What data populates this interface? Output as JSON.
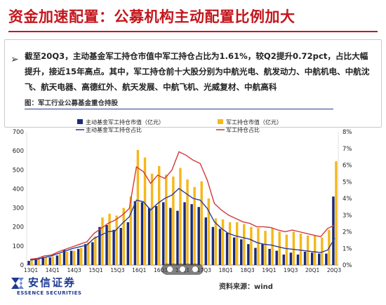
{
  "header": {
    "title": "资金加速配置：公募机构主动配置比例加大"
  },
  "bullet": {
    "text": "截至20Q3，主动基金军工持仓市值中军工持仓占比为1.61%，较Q2提升0.72pct，占比大幅提升，接近15年高点。其中，军工持仓前十大股分别为中航光电、航发动力、中航机电、中航沈飞、航天电器、高德红外、航天发展、中航飞机、光威复材、中航高科",
    "caption": "图：军工行业公募基金重仓持股"
  },
  "footer": {
    "logo_cn": "安信证券",
    "logo_en": "ESSENCE SECURITIES",
    "source": "资料来源：wind"
  },
  "colors": {
    "title_red": "#c4161c",
    "series_navy": "#1a2a7a",
    "series_gold": "#f5b81c",
    "line_blue": "#2b3d9c",
    "line_red": "#d23a3a",
    "brand_blue": "#1f3a93"
  },
  "chart_data": {
    "type": "bar",
    "x_ticks": [
      "13Q1",
      "14Q1",
      "14Q3",
      "15Q1",
      "15Q3",
      "16Q1",
      "16Q3",
      "17Q1",
      "17Q3",
      "18Q1",
      "18Q3",
      "19Q1",
      "19Q3",
      "20Q1",
      "20Q3"
    ],
    "ylim_left": [
      0,
      700
    ],
    "yticks_left": [
      0,
      100,
      200,
      300,
      400,
      500,
      600,
      700
    ],
    "ylim_right": [
      0,
      8
    ],
    "yticks_right": [
      "0%",
      "1%",
      "2%",
      "3%",
      "4%",
      "5%",
      "6%",
      "7%",
      "8%"
    ],
    "series": [
      {
        "name": "主动基金军工持仓市值（亿元）",
        "type": "bar",
        "axis": "left",
        "values": [
          22,
          30,
          42,
          40,
          50,
          80,
          75,
          85,
          110,
          120,
          200,
          210,
          185,
          195,
          225,
          335,
          330,
          300,
          310,
          330,
          300,
          285,
          330,
          320,
          305,
          250,
          200,
          190,
          170,
          145,
          135,
          110,
          90,
          110,
          85,
          75,
          55,
          65,
          55,
          70,
          65,
          60,
          60,
          360
        ]
      },
      {
        "name": "军工持仓市值（亿元）",
        "type": "bar",
        "axis": "left",
        "values": [
          25,
          35,
          40,
          45,
          60,
          70,
          75,
          90,
          120,
          150,
          250,
          270,
          260,
          300,
          360,
          605,
          565,
          480,
          520,
          475,
          465,
          510,
          450,
          410,
          440,
          350,
          245,
          240,
          225,
          225,
          215,
          200,
          195,
          180,
          195,
          175,
          160,
          175,
          165,
          155,
          155,
          145,
          185,
          545
        ]
      },
      {
        "name": "主动基金军工持仓占比",
        "type": "line",
        "axis": "right",
        "values": [
          0.3,
          0.35,
          0.45,
          0.55,
          0.7,
          0.85,
          1.0,
          1.1,
          1.2,
          1.6,
          1.8,
          2.0,
          2.05,
          2.5,
          2.9,
          3.9,
          3.8,
          3.3,
          3.7,
          4.0,
          4.2,
          4.6,
          4.3,
          4.0,
          3.9,
          3.4,
          2.6,
          2.2,
          1.9,
          1.75,
          1.65,
          1.55,
          1.35,
          1.25,
          1.2,
          1.1,
          1.0,
          0.95,
          0.9,
          0.85,
          0.8,
          0.75,
          0.9,
          1.61
        ]
      },
      {
        "name": "军工持仓占比",
        "type": "line",
        "axis": "right",
        "values": [
          0.35,
          0.4,
          0.55,
          0.6,
          0.8,
          0.95,
          1.1,
          1.25,
          1.4,
          1.9,
          2.2,
          2.5,
          2.7,
          3.0,
          3.4,
          5.9,
          5.6,
          4.9,
          5.4,
          5.2,
          5.7,
          6.8,
          6.6,
          6.3,
          6.1,
          5.1,
          3.7,
          3.3,
          3.0,
          2.8,
          2.6,
          2.5,
          2.3,
          2.3,
          2.25,
          2.1,
          2.0,
          2.1,
          2.0,
          1.9,
          1.8,
          1.7,
          2.2,
          2.4
        ]
      }
    ],
    "legend_position": "top"
  }
}
